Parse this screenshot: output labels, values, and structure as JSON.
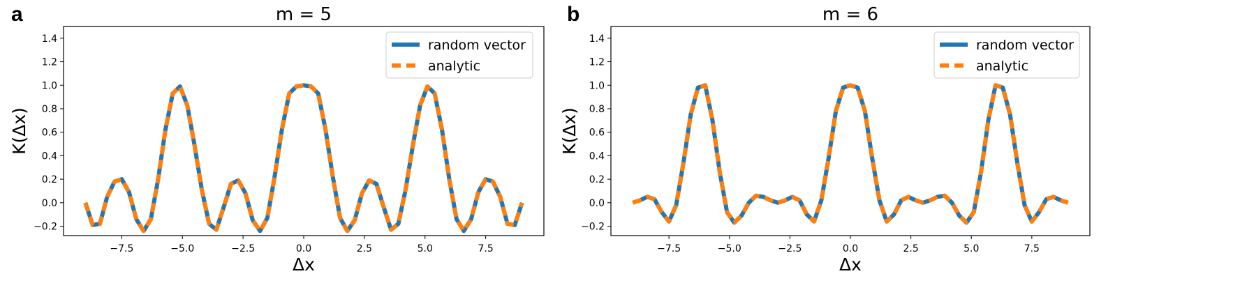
{
  "figure": {
    "panels": [
      {
        "label": "a"
      },
      {
        "label": "b"
      }
    ]
  },
  "chart_data": [
    {
      "type": "line",
      "panel": "a",
      "title": "m = 5",
      "xlabel": "Δx",
      "ylabel": "K(Δx)",
      "xlim": [
        -9.9,
        9.9
      ],
      "ylim": [
        -0.28,
        1.5
      ],
      "xticks": [
        -7.5,
        -5.0,
        -2.5,
        0.0,
        2.5,
        5.0,
        7.5
      ],
      "xtick_labels": [
        "−7.5",
        "−5.0",
        "−2.5",
        "0.0",
        "2.5",
        "5.0",
        "7.5"
      ],
      "yticks": [
        -0.2,
        0.0,
        0.2,
        0.4,
        0.6,
        0.8,
        1.0,
        1.2,
        1.4
      ],
      "ytick_labels": [
        "−0.2",
        "0.0",
        "0.2",
        "0.4",
        "0.6",
        "0.8",
        "1.0",
        "1.2",
        "1.4"
      ],
      "legend": {
        "placement": "top-right",
        "entries": [
          "random vector",
          "analytic"
        ]
      },
      "series": [
        {
          "name": "random vector",
          "color": "#1f77b4",
          "style": "solid"
        },
        {
          "name": "analytic",
          "color": "#ff7f0e",
          "style": "dashed"
        }
      ],
      "x": [
        -9.0,
        -8.7,
        -8.4,
        -8.1,
        -7.8,
        -7.5,
        -7.2,
        -6.9,
        -6.6,
        -6.3,
        -6.0,
        -5.7,
        -5.4,
        -5.1,
        -4.8,
        -4.5,
        -4.2,
        -3.9,
        -3.6,
        -3.3,
        -3.0,
        -2.7,
        -2.4,
        -2.1,
        -1.8,
        -1.5,
        -1.2,
        -0.9,
        -0.6,
        -0.3,
        0.0,
        0.3,
        0.6,
        0.9,
        1.2,
        1.5,
        1.8,
        2.1,
        2.4,
        2.7,
        3.0,
        3.3,
        3.6,
        3.9,
        4.2,
        4.5,
        4.8,
        5.1,
        5.4,
        5.7,
        6.0,
        6.3,
        6.6,
        6.9,
        7.2,
        7.5,
        7.8,
        8.1,
        8.4,
        8.7,
        9.0
      ],
      "y": [
        0.0,
        -0.19,
        -0.18,
        0.05,
        0.18,
        0.2,
        0.09,
        -0.14,
        -0.24,
        -0.14,
        0.2,
        0.62,
        0.93,
        0.99,
        0.83,
        0.49,
        0.11,
        -0.18,
        -0.23,
        -0.04,
        0.16,
        0.19,
        0.08,
        -0.15,
        -0.24,
        -0.13,
        0.22,
        0.62,
        0.93,
        0.99,
        1.0,
        0.99,
        0.93,
        0.62,
        0.22,
        -0.13,
        -0.24,
        -0.15,
        0.08,
        0.19,
        0.16,
        -0.04,
        -0.23,
        -0.18,
        0.11,
        0.49,
        0.83,
        0.99,
        0.93,
        0.62,
        0.2,
        -0.14,
        -0.24,
        -0.14,
        0.09,
        0.2,
        0.18,
        0.05,
        -0.18,
        -0.19,
        0.0
      ]
    },
    {
      "type": "line",
      "panel": "b",
      "title": "m = 6",
      "xlabel": "Δx",
      "ylabel": "K(Δx)",
      "xlim": [
        -9.9,
        9.9
      ],
      "ylim": [
        -0.28,
        1.5
      ],
      "xticks": [
        -7.5,
        -5.0,
        -2.5,
        0.0,
        2.5,
        5.0,
        7.5
      ],
      "xtick_labels": [
        "−7.5",
        "−5.0",
        "−2.5",
        "0.0",
        "2.5",
        "5.0",
        "7.5"
      ],
      "yticks": [
        -0.2,
        0.0,
        0.2,
        0.4,
        0.6,
        0.8,
        1.0,
        1.2,
        1.4
      ],
      "ytick_labels": [
        "−0.2",
        "0.0",
        "0.2",
        "0.4",
        "0.6",
        "0.8",
        "1.0",
        "1.2",
        "1.4"
      ],
      "legend": {
        "placement": "top-right",
        "entries": [
          "random vector",
          "analytic"
        ]
      },
      "series": [
        {
          "name": "random vector",
          "color": "#1f77b4",
          "style": "solid"
        },
        {
          "name": "analytic",
          "color": "#ff7f0e",
          "style": "dashed"
        }
      ],
      "x": [
        -9.0,
        -8.7,
        -8.4,
        -8.1,
        -7.8,
        -7.5,
        -7.2,
        -6.9,
        -6.6,
        -6.3,
        -6.0,
        -5.7,
        -5.4,
        -5.1,
        -4.8,
        -4.5,
        -4.2,
        -3.9,
        -3.6,
        -3.3,
        -3.0,
        -2.7,
        -2.4,
        -2.1,
        -1.8,
        -1.5,
        -1.2,
        -0.9,
        -0.6,
        -0.3,
        0.0,
        0.3,
        0.6,
        0.9,
        1.2,
        1.5,
        1.8,
        2.1,
        2.4,
        2.7,
        3.0,
        3.3,
        3.6,
        3.9,
        4.2,
        4.5,
        4.8,
        5.1,
        5.4,
        5.7,
        6.0,
        6.3,
        6.6,
        6.9,
        7.2,
        7.5,
        7.8,
        8.1,
        8.4,
        8.7,
        9.0
      ],
      "y": [
        0.0,
        0.02,
        0.05,
        0.03,
        -0.08,
        -0.16,
        -0.02,
        0.34,
        0.75,
        0.98,
        1.0,
        0.7,
        0.26,
        -0.08,
        -0.17,
        -0.11,
        0.0,
        0.06,
        0.05,
        0.02,
        0.0,
        0.02,
        0.05,
        0.02,
        -0.1,
        -0.16,
        0.02,
        0.38,
        0.78,
        0.98,
        1.0,
        0.98,
        0.78,
        0.38,
        0.02,
        -0.16,
        -0.1,
        0.02,
        0.05,
        0.02,
        0.0,
        0.02,
        0.05,
        0.06,
        0.0,
        -0.11,
        -0.17,
        -0.08,
        0.26,
        0.7,
        1.0,
        0.98,
        0.75,
        0.34,
        -0.02,
        -0.16,
        -0.08,
        0.03,
        0.05,
        0.02,
        0.0
      ]
    }
  ]
}
